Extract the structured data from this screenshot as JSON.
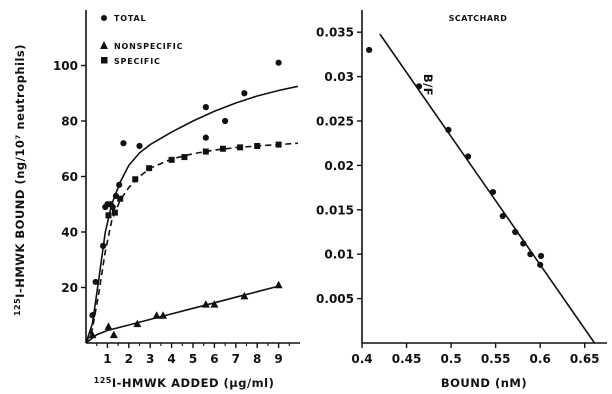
{
  "chart_data": [
    {
      "type": "scatter",
      "title": "",
      "xlabel": "125I-HMWK ADDED (µg/ml)",
      "ylabel": "125I-HMWK BOUND (ng/10⁷ neutrophils)",
      "xlim": [
        0,
        10
      ],
      "ylim": [
        0,
        120
      ],
      "x_ticks": [
        "1",
        "2",
        "3",
        "4",
        "5",
        "6",
        "7",
        "8",
        "9"
      ],
      "y_ticks": [
        "20",
        "40",
        "60",
        "80",
        "100"
      ],
      "legend_position": "top-left",
      "series": [
        {
          "name": "TOTAL",
          "marker": "circle",
          "line": "solid",
          "points": [
            [
              0.3,
              10
            ],
            [
              0.45,
              22
            ],
            [
              0.8,
              35
            ],
            [
              0.9,
              49
            ],
            [
              1.0,
              50
            ],
            [
              1.15,
              50
            ],
            [
              1.25,
              49
            ],
            [
              1.4,
              53
            ],
            [
              1.55,
              57
            ],
            [
              1.75,
              72
            ],
            [
              2.5,
              71
            ],
            [
              5.6,
              74
            ],
            [
              5.6,
              85
            ],
            [
              6.5,
              80
            ],
            [
              7.4,
              90
            ],
            [
              9.0,
              101
            ]
          ],
          "curve": [
            [
              0,
              0
            ],
            [
              0.3,
              7
            ],
            [
              0.6,
              23
            ],
            [
              0.9,
              40
            ],
            [
              1.2,
              50
            ],
            [
              1.6,
              58
            ],
            [
              2.0,
              64
            ],
            [
              2.5,
              68.5
            ],
            [
              3.0,
              71.5
            ],
            [
              4.0,
              76
            ],
            [
              5.0,
              80
            ],
            [
              6.0,
              83.5
            ],
            [
              7.0,
              86.5
            ],
            [
              8.0,
              89
            ],
            [
              9.0,
              91
            ],
            [
              9.9,
              92.5
            ]
          ]
        },
        {
          "name": "NONSPECIFIC",
          "marker": "triangle",
          "line": "solid",
          "points": [
            [
              0.3,
              3
            ],
            [
              1.05,
              6
            ],
            [
              1.3,
              3
            ],
            [
              2.4,
              7
            ],
            [
              3.3,
              10
            ],
            [
              3.6,
              10
            ],
            [
              5.6,
              14
            ],
            [
              6.0,
              14
            ],
            [
              7.4,
              17
            ],
            [
              9.0,
              21
            ]
          ],
          "curve": [
            [
              0,
              0
            ],
            [
              0.5,
              3
            ],
            [
              1.0,
              4.5
            ],
            [
              2.0,
              6.5
            ],
            [
              3.0,
              8.5
            ],
            [
              4.0,
              10.5
            ],
            [
              5.0,
              12.5
            ],
            [
              6.0,
              14.5
            ],
            [
              7.0,
              16.5
            ],
            [
              8.0,
              18.5
            ],
            [
              9.0,
              20.5
            ]
          ]
        },
        {
          "name": "SPECIFIC",
          "marker": "square",
          "line": "dashed",
          "points": [
            [
              1.05,
              46
            ],
            [
              1.35,
              47
            ],
            [
              1.6,
              52
            ],
            [
              2.3,
              59
            ],
            [
              2.95,
              63
            ],
            [
              4.0,
              66
            ],
            [
              4.6,
              67
            ],
            [
              5.6,
              69
            ],
            [
              6.4,
              70
            ],
            [
              7.2,
              70.5
            ],
            [
              8.0,
              71
            ],
            [
              9.0,
              71.5
            ]
          ],
          "curve": [
            [
              0,
              0
            ],
            [
              0.3,
              5
            ],
            [
              0.6,
              18
            ],
            [
              0.9,
              33
            ],
            [
              1.2,
              44
            ],
            [
              1.6,
              51.5
            ],
            [
              2.0,
              56
            ],
            [
              2.5,
              60
            ],
            [
              3.0,
              63
            ],
            [
              4.0,
              66.3
            ],
            [
              5.0,
              68.2
            ],
            [
              6.0,
              69.5
            ],
            [
              7.0,
              70.4
            ],
            [
              8.0,
              71
            ],
            [
              9.0,
              71.5
            ],
            [
              9.9,
              72
            ]
          ]
        }
      ]
    },
    {
      "type": "scatter",
      "title": "SCATCHARD",
      "xlabel": "BOUND (nM)",
      "ylabel": "B/F",
      "xlim": [
        0.4,
        0.675
      ],
      "ylim": [
        0,
        0.0375
      ],
      "x_ticks": [
        "0.4",
        "0.45",
        "0.5",
        "0.55",
        "0.6",
        "0.65"
      ],
      "y_ticks": [
        "0.005",
        "0.01",
        "0.015",
        "0.02",
        "0.025",
        "0.03",
        "0.035"
      ],
      "series": [
        {
          "marker": "circle",
          "points": [
            [
              0.408,
              0.033
            ],
            [
              0.464,
              0.0289
            ],
            [
              0.497,
              0.024
            ],
            [
              0.519,
              0.021
            ],
            [
              0.547,
              0.017
            ],
            [
              0.558,
              0.0143
            ],
            [
              0.572,
              0.0125
            ],
            [
              0.581,
              0.0112
            ],
            [
              0.589,
              0.01
            ],
            [
              0.6,
              0.0088
            ],
            [
              0.601,
              0.0098
            ]
          ],
          "fit_line": [
            [
              0.42,
              0.0348
            ],
            [
              0.661,
              0
            ]
          ]
        }
      ]
    }
  ]
}
